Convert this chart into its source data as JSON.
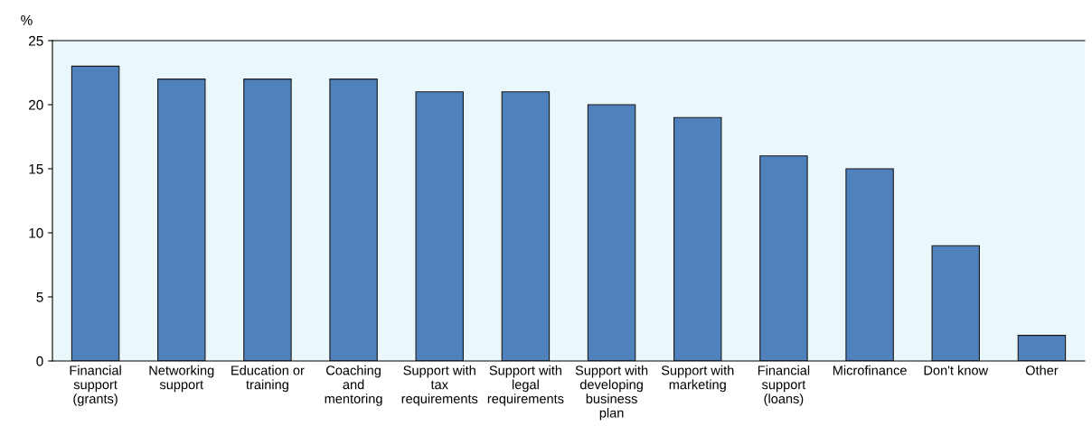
{
  "chart_data": {
    "type": "bar",
    "ylabel": "%",
    "categories": [
      "Financial\nsupport\n(grants)",
      "Networking\nsupport",
      "Education or\ntraining",
      "Coaching\nand\nmentoring",
      "Support with\ntax\nrequirements",
      "Support with\nlegal\nrequirements",
      "Support with\ndeveloping\nbusiness\nplan",
      "Support with\nmarketing",
      "Financial\nsupport\n(loans)",
      "Microfinance",
      "Don't know",
      "Other"
    ],
    "values": [
      23,
      22,
      22,
      22,
      21,
      21,
      20,
      19,
      16,
      15,
      9,
      2
    ],
    "color": "#4f81bd",
    "ylim": [
      0,
      25
    ],
    "yticks": [
      0,
      5,
      10,
      15,
      20,
      25
    ],
    "grid": false,
    "legend": false
  }
}
